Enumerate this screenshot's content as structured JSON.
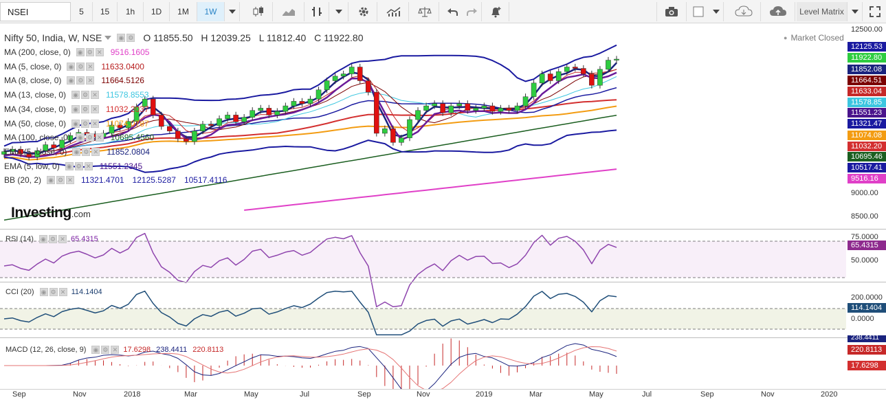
{
  "toolbar": {
    "symbol": "NSEI",
    "intervals": [
      "5",
      "15",
      "1h",
      "1D",
      "1M",
      "1W"
    ],
    "active_interval": "1W",
    "level_matrix": "Level Matrix"
  },
  "main_legend": {
    "title": "Nifty 50, India, W, NSE",
    "open": "O 11855.50",
    "high": "H 12039.25",
    "low": "L 11812.40",
    "close": "C 11922.80",
    "market_status": "Market Closed"
  },
  "indicators": [
    {
      "label": "MA (200, close, 0)",
      "values": [
        "9516.1605"
      ],
      "color": "#e040c8"
    },
    {
      "label": "MA (5, close, 0)",
      "values": [
        "11633.0400"
      ],
      "color": "#b71c1c"
    },
    {
      "label": "MA (8, close, 0)",
      "values": [
        "11664.5126"
      ],
      "color": "#7b0000"
    },
    {
      "label": "MA (13, close, 0)",
      "values": [
        "11578.8553"
      ],
      "color": "#3cc6e0"
    },
    {
      "label": "MA (34, close, 0)",
      "values": [
        "11032.2037"
      ],
      "color": "#d32f2f"
    },
    {
      "label": "MA (50, close, 0)",
      "values": [
        "11074.0787"
      ],
      "color": "#f39c12"
    },
    {
      "label": "MA (100, close, 0)",
      "values": [
        "10695.4560"
      ],
      "color": "#1b5e20"
    },
    {
      "label": "EMA (5, close, 0)",
      "values": [
        "11852.0804"
      ],
      "color": "#1a237e"
    },
    {
      "label": "EMA (5, low, 0)",
      "values": [
        "11551.2345"
      ],
      "color": "#4a148c"
    },
    {
      "label": "BB (20, 2)",
      "values": [
        "11321.4701",
        "12125.5287",
        "10517.4116"
      ],
      "color": "#1a1aa0"
    }
  ],
  "price_axis": {
    "ticks": [
      "12500.00",
      "9000.00",
      "8500.00"
    ],
    "tags": [
      {
        "text": "12125.53",
        "color": "#1a1aa0"
      },
      {
        "text": "11922.80",
        "color": "#2ecc40"
      },
      {
        "text": "11852.08",
        "color": "#1a237e"
      },
      {
        "text": "11664.51",
        "color": "#7b0000"
      },
      {
        "text": "11633.04",
        "color": "#c62828"
      },
      {
        "text": "11578.85",
        "color": "#3cc6e0"
      },
      {
        "text": "11551.23",
        "color": "#4a148c"
      },
      {
        "text": "11321.47",
        "color": "#1a1aa0"
      },
      {
        "text": "11074.08",
        "color": "#f39c12"
      },
      {
        "text": "11032.20",
        "color": "#d32f2f"
      },
      {
        "text": "10695.46",
        "color": "#1b5e20"
      },
      {
        "text": "10517.41",
        "color": "#1a1aa0"
      },
      {
        "text": "9516.16",
        "color": "#e040c8"
      }
    ]
  },
  "rsi": {
    "label": "RSI (14)",
    "value": "65.4315",
    "ticks": [
      "75.0000",
      "50.0000"
    ],
    "tag": "65.4315"
  },
  "cci": {
    "label": "CCI (20)",
    "value": "114.1404",
    "ticks": [
      "200.0000",
      "0.0000"
    ],
    "tag": "114.1404"
  },
  "macd": {
    "label": "MACD (12, 26, close, 9)",
    "values": [
      "17.6298",
      "238.4411",
      "220.8113"
    ],
    "tags": [
      "238.4411",
      "220.8113",
      "17.6298"
    ]
  },
  "logo": {
    "brand": "Investing",
    "suffix": ".com"
  },
  "time_axis": [
    "Sep",
    "Nov",
    "2018",
    "Mar",
    "May",
    "Jul",
    "Sep",
    "Nov",
    "2019",
    "Mar",
    "May",
    "Jul",
    "Sep",
    "Nov",
    "2020"
  ],
  "chart_data": {
    "type": "candlestick",
    "title": "Nifty 50, India, W, NSE",
    "x_range": [
      "2017-08",
      "2019-05"
    ],
    "price_range": [
      8300,
      12600
    ],
    "closes": [
      9900,
      9950,
      9850,
      9780,
      9920,
      10050,
      9980,
      10150,
      10250,
      10320,
      10280,
      10220,
      10300,
      10480,
      10420,
      10560,
      10880,
      11050,
      10700,
      10450,
      10350,
      10180,
      10120,
      10350,
      10500,
      10470,
      10620,
      10700,
      10550,
      10650,
      10800,
      10850,
      10700,
      10780,
      10900,
      11000,
      10950,
      11050,
      11250,
      11450,
      11550,
      11600,
      11750,
      11450,
      11200,
      10300,
      10400,
      10100,
      10200,
      10600,
      10800,
      10900,
      10950,
      10750,
      10900,
      10950,
      10800,
      10850,
      10900,
      10780,
      10850,
      10800,
      10900,
      11100,
      11400,
      11600,
      11450,
      11650,
      11750,
      11720,
      11600,
      11350,
      11700,
      11900,
      11922.8
    ]
  }
}
